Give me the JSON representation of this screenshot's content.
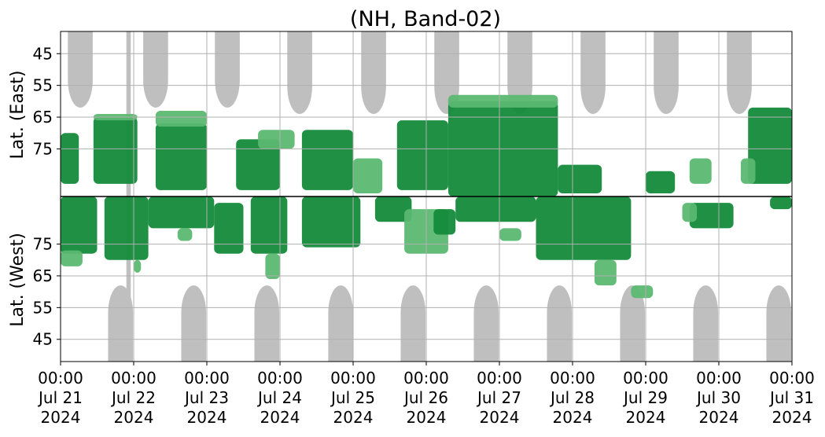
{
  "chart_data": {
    "type": "heatmap",
    "title": "(NH, Band-02)",
    "ylabel_top": "Lat. (East)",
    "ylabel_bottom": "Lat. (West)",
    "grid": true,
    "x_range_days": [
      0,
      10
    ],
    "x_ticks": [
      {
        "day": 0,
        "time": "00:00",
        "date": "Jul 21",
        "year": "2024"
      },
      {
        "day": 1,
        "time": "00:00",
        "date": "Jul 22",
        "year": "2024"
      },
      {
        "day": 2,
        "time": "00:00",
        "date": "Jul 23",
        "year": "2024"
      },
      {
        "day": 3,
        "time": "00:00",
        "date": "Jul 24",
        "year": "2024"
      },
      {
        "day": 4,
        "time": "00:00",
        "date": "Jul 25",
        "year": "2024"
      },
      {
        "day": 5,
        "time": "00:00",
        "date": "Jul 26",
        "year": "2024"
      },
      {
        "day": 6,
        "time": "00:00",
        "date": "Jul 27",
        "year": "2024"
      },
      {
        "day": 7,
        "time": "00:00",
        "date": "Jul 28",
        "year": "2024"
      },
      {
        "day": 8,
        "time": "00:00",
        "date": "Jul 29",
        "year": "2024"
      },
      {
        "day": 9,
        "time": "00:00",
        "date": "Jul 30",
        "year": "2024"
      },
      {
        "day": 10,
        "time": "00:00",
        "date": "Jul 31",
        "year": "2024"
      }
    ],
    "y_range_east": [
      38,
      90
    ],
    "y_range_west": [
      90,
      38
    ],
    "y_ticks_east": [
      "45",
      "55",
      "65",
      "75"
    ],
    "y_ticks_west": [
      "75",
      "65",
      "55",
      "45"
    ],
    "colors": {
      "strong": "#138a3a",
      "weak": "#5bb870",
      "no_data": "#bfbfbf",
      "grid": "#b0b0b0",
      "divider": "#000000"
    },
    "no_data_east": [
      {
        "center": 0.27,
        "halfwidth": 0.17,
        "min_lat": 62
      },
      {
        "center": 1.3,
        "halfwidth": 0.17,
        "min_lat": 62
      },
      {
        "center": 2.28,
        "halfwidth": 0.17,
        "min_lat": 62
      },
      {
        "center": 3.27,
        "halfwidth": 0.17,
        "min_lat": 64
      },
      {
        "center": 4.28,
        "halfwidth": 0.17,
        "min_lat": 64
      },
      {
        "center": 5.28,
        "halfwidth": 0.17,
        "min_lat": 64
      },
      {
        "center": 6.28,
        "halfwidth": 0.17,
        "min_lat": 64
      },
      {
        "center": 7.28,
        "halfwidth": 0.17,
        "min_lat": 64
      },
      {
        "center": 8.28,
        "halfwidth": 0.17,
        "min_lat": 64
      },
      {
        "center": 9.28,
        "halfwidth": 0.17,
        "min_lat": 64
      }
    ],
    "no_data_west": [
      {
        "center": 0.82,
        "halfwidth": 0.17,
        "min_lat": 62
      },
      {
        "center": 1.82,
        "halfwidth": 0.17,
        "min_lat": 62
      },
      {
        "center": 2.82,
        "halfwidth": 0.17,
        "min_lat": 62
      },
      {
        "center": 3.83,
        "halfwidth": 0.17,
        "min_lat": 62
      },
      {
        "center": 4.82,
        "halfwidth": 0.17,
        "min_lat": 62
      },
      {
        "center": 5.82,
        "halfwidth": 0.17,
        "min_lat": 62
      },
      {
        "center": 6.82,
        "halfwidth": 0.17,
        "min_lat": 62
      },
      {
        "center": 7.82,
        "halfwidth": 0.17,
        "min_lat": 62
      },
      {
        "center": 8.82,
        "halfwidth": 0.17,
        "min_lat": 62
      },
      {
        "center": 9.82,
        "halfwidth": 0.17,
        "min_lat": 62
      }
    ],
    "no_data_strips": [
      {
        "start": 0.9,
        "end": 0.96
      }
    ],
    "activity_east": [
      {
        "x0": 0.0,
        "x1": 0.25,
        "lat0": 70,
        "lat1": 86,
        "level": "strong"
      },
      {
        "x0": 0.45,
        "x1": 1.05,
        "lat0": 65,
        "lat1": 86,
        "level": "strong"
      },
      {
        "x0": 0.45,
        "x1": 1.05,
        "lat0": 64,
        "lat1": 66,
        "level": "weak"
      },
      {
        "x0": 1.3,
        "x1": 2.0,
        "lat0": 67,
        "lat1": 88,
        "level": "strong"
      },
      {
        "x0": 1.3,
        "x1": 2.0,
        "lat0": 63,
        "lat1": 68,
        "level": "weak"
      },
      {
        "x0": 2.4,
        "x1": 3.0,
        "lat0": 72,
        "lat1": 88,
        "level": "strong"
      },
      {
        "x0": 2.7,
        "x1": 3.2,
        "lat0": 69,
        "lat1": 75,
        "level": "weak"
      },
      {
        "x0": 3.3,
        "x1": 4.0,
        "lat0": 69,
        "lat1": 88,
        "level": "strong"
      },
      {
        "x0": 4.0,
        "x1": 4.4,
        "lat0": 78,
        "lat1": 89,
        "level": "weak"
      },
      {
        "x0": 4.6,
        "x1": 5.3,
        "lat0": 66,
        "lat1": 88,
        "level": "strong"
      },
      {
        "x0": 5.3,
        "x1": 6.8,
        "lat0": 60,
        "lat1": 90,
        "level": "strong"
      },
      {
        "x0": 5.3,
        "x1": 6.8,
        "lat0": 58,
        "lat1": 62,
        "level": "weak"
      },
      {
        "x0": 6.8,
        "x1": 7.4,
        "lat0": 80,
        "lat1": 89,
        "level": "strong"
      },
      {
        "x0": 8.0,
        "x1": 8.4,
        "lat0": 82,
        "lat1": 89,
        "level": "strong"
      },
      {
        "x0": 8.6,
        "x1": 8.9,
        "lat0": 78,
        "lat1": 86,
        "level": "weak"
      },
      {
        "x0": 9.4,
        "x1": 10.0,
        "lat0": 62,
        "lat1": 86,
        "level": "strong"
      },
      {
        "x0": 9.3,
        "x1": 9.5,
        "lat0": 78,
        "lat1": 86,
        "level": "weak"
      }
    ],
    "activity_west": [
      {
        "x0": 0.0,
        "x1": 0.5,
        "lat0": 72,
        "lat1": 90,
        "level": "strong"
      },
      {
        "x0": 0.0,
        "x1": 0.3,
        "lat0": 68,
        "lat1": 73,
        "level": "weak"
      },
      {
        "x0": 0.6,
        "x1": 1.2,
        "lat0": 70,
        "lat1": 90,
        "level": "strong"
      },
      {
        "x0": 1.0,
        "x1": 1.1,
        "lat0": 66,
        "lat1": 70,
        "level": "weak"
      },
      {
        "x0": 1.2,
        "x1": 2.1,
        "lat0": 80,
        "lat1": 90,
        "level": "strong"
      },
      {
        "x0": 1.6,
        "x1": 1.8,
        "lat0": 76,
        "lat1": 80,
        "level": "weak"
      },
      {
        "x0": 2.1,
        "x1": 2.5,
        "lat0": 72,
        "lat1": 88,
        "level": "strong"
      },
      {
        "x0": 2.6,
        "x1": 3.1,
        "lat0": 72,
        "lat1": 90,
        "level": "strong"
      },
      {
        "x0": 2.8,
        "x1": 3.0,
        "lat0": 64,
        "lat1": 72,
        "level": "weak"
      },
      {
        "x0": 3.3,
        "x1": 4.1,
        "lat0": 74,
        "lat1": 90,
        "level": "strong"
      },
      {
        "x0": 4.3,
        "x1": 4.8,
        "lat0": 82,
        "lat1": 90,
        "level": "strong"
      },
      {
        "x0": 4.7,
        "x1": 5.3,
        "lat0": 72,
        "lat1": 86,
        "level": "weak"
      },
      {
        "x0": 5.1,
        "x1": 5.4,
        "lat0": 78,
        "lat1": 86,
        "level": "strong"
      },
      {
        "x0": 5.4,
        "x1": 6.5,
        "lat0": 82,
        "lat1": 90,
        "level": "strong"
      },
      {
        "x0": 6.0,
        "x1": 6.3,
        "lat0": 76,
        "lat1": 80,
        "level": "weak"
      },
      {
        "x0": 6.5,
        "x1": 7.8,
        "lat0": 70,
        "lat1": 90,
        "level": "strong"
      },
      {
        "x0": 7.3,
        "x1": 7.6,
        "lat0": 62,
        "lat1": 70,
        "level": "weak"
      },
      {
        "x0": 7.8,
        "x1": 8.1,
        "lat0": 58,
        "lat1": 62,
        "level": "weak"
      },
      {
        "x0": 8.6,
        "x1": 9.2,
        "lat0": 80,
        "lat1": 88,
        "level": "strong"
      },
      {
        "x0": 8.5,
        "x1": 8.7,
        "lat0": 82,
        "lat1": 88,
        "level": "weak"
      },
      {
        "x0": 9.7,
        "x1": 10.0,
        "lat0": 86,
        "lat1": 90,
        "level": "strong"
      }
    ]
  }
}
